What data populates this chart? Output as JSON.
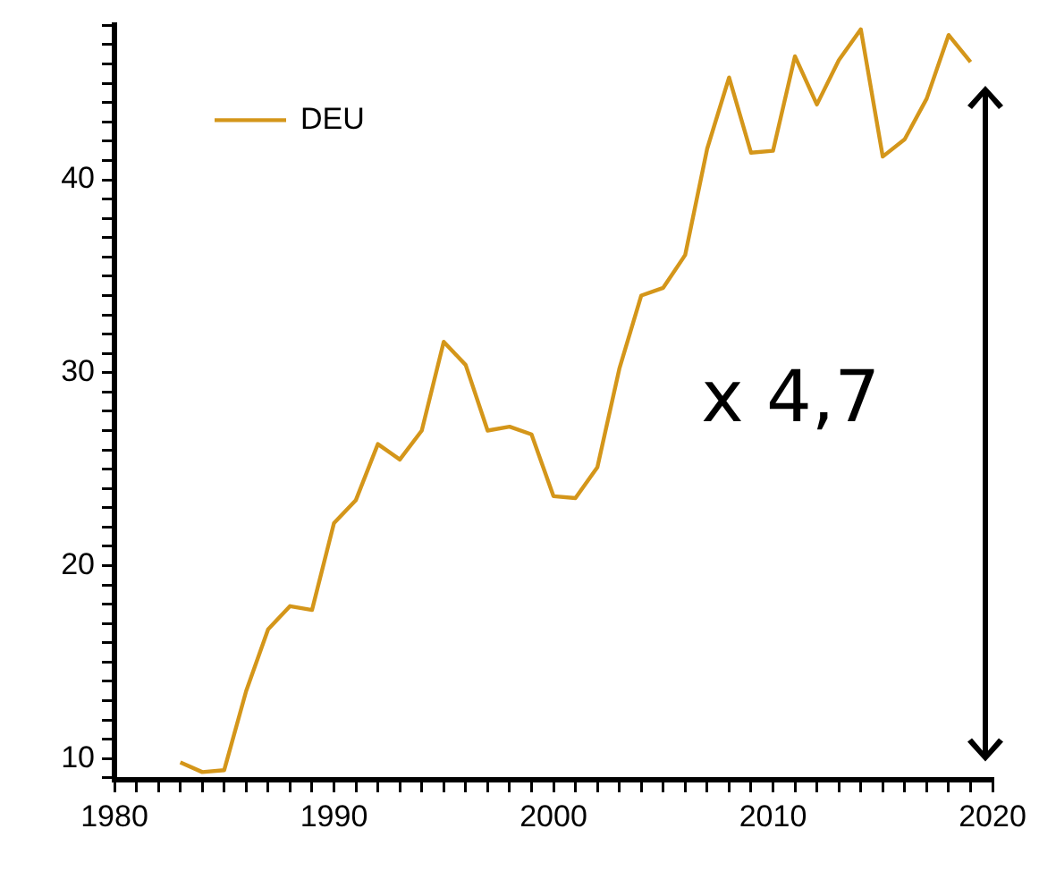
{
  "chart_data": {
    "type": "line",
    "x": [
      1983,
      1984,
      1985,
      1986,
      1987,
      1988,
      1989,
      1990,
      1991,
      1992,
      1993,
      1994,
      1995,
      1996,
      1997,
      1998,
      1999,
      2000,
      2001,
      2002,
      2003,
      2004,
      2005,
      2006,
      2007,
      2008,
      2009,
      2010,
      2011,
      2012,
      2013,
      2014,
      2015,
      2016,
      2017,
      2018,
      2019
    ],
    "series": [
      {
        "name": "DEU",
        "color": "#d4961a",
        "values": [
          9.8,
          9.3,
          9.4,
          13.5,
          16.7,
          17.9,
          17.7,
          22.2,
          23.4,
          26.3,
          25.5,
          27.0,
          31.6,
          30.4,
          27.0,
          27.2,
          26.8,
          23.6,
          23.5,
          25.1,
          30.2,
          34.0,
          34.4,
          36.1,
          41.6,
          45.3,
          41.4,
          41.5,
          46.4,
          43.9,
          46.2,
          47.8,
          41.2,
          42.1,
          44.2,
          47.5,
          46.1
        ]
      }
    ],
    "xlim": [
      1980,
      2020
    ],
    "xticks": [
      1980,
      {
        "value": 1981,
        "label": null
      },
      {
        "value": 1982,
        "label": null
      },
      {
        "value": 1983,
        "label": null
      },
      {
        "value": 1984,
        "label": null
      },
      {
        "value": 1985,
        "label": null
      },
      {
        "value": 1986,
        "label": null
      },
      {
        "value": 1987,
        "label": null
      },
      {
        "value": 1988,
        "label": null
      },
      {
        "value": 1989,
        "label": null
      },
      1990,
      {
        "value": 1991,
        "label": null
      },
      {
        "value": 1992,
        "label": null
      },
      {
        "value": 1993,
        "label": null
      },
      {
        "value": 1994,
        "label": null
      },
      {
        "value": 1995,
        "label": null
      },
      {
        "value": 1996,
        "label": null
      },
      {
        "value": 1997,
        "label": null
      },
      {
        "value": 1998,
        "label": null
      },
      {
        "value": 1999,
        "label": null
      },
      2000,
      {
        "value": 2001,
        "label": null
      },
      {
        "value": 2002,
        "label": null
      },
      {
        "value": 2003,
        "label": null
      },
      {
        "value": 2004,
        "label": null
      },
      {
        "value": 2005,
        "label": null
      },
      {
        "value": 2006,
        "label": null
      },
      {
        "value": 2007,
        "label": null
      },
      {
        "value": 2008,
        "label": null
      },
      {
        "value": 2009,
        "label": null
      },
      2010,
      {
        "value": 2011,
        "label": null
      },
      {
        "value": 2012,
        "label": null
      },
      {
        "value": 2013,
        "label": null
      },
      {
        "value": 2014,
        "label": null
      },
      {
        "value": 2015,
        "label": null
      },
      {
        "value": 2016,
        "label": null
      },
      {
        "value": 2017,
        "label": null
      },
      {
        "value": 2018,
        "label": null
      },
      {
        "value": 2019,
        "label": null
      },
      2020
    ],
    "ylim": [
      8.9,
      48
    ],
    "yticks": [
      {
        "value": 9,
        "label": null
      },
      10,
      {
        "value": 11,
        "label": null
      },
      {
        "value": 12,
        "label": null
      },
      {
        "value": 13,
        "label": null
      },
      {
        "value": 14,
        "label": null
      },
      {
        "value": 15,
        "label": null
      },
      {
        "value": 16,
        "label": null
      },
      {
        "value": 17,
        "label": null
      },
      {
        "value": 18,
        "label": null
      },
      {
        "value": 19,
        "label": null
      },
      20,
      {
        "value": 21,
        "label": null
      },
      {
        "value": 22,
        "label": null
      },
      {
        "value": 23,
        "label": null
      },
      {
        "value": 24,
        "label": null
      },
      {
        "value": 25,
        "label": null
      },
      {
        "value": 26,
        "label": null
      },
      {
        "value": 27,
        "label": null
      },
      {
        "value": 28,
        "label": null
      },
      {
        "value": 29,
        "label": null
      },
      30,
      {
        "value": 31,
        "label": null
      },
      {
        "value": 32,
        "label": null
      },
      {
        "value": 33,
        "label": null
      },
      {
        "value": 34,
        "label": null
      },
      {
        "value": 35,
        "label": null
      },
      {
        "value": 36,
        "label": null
      },
      {
        "value": 37,
        "label": null
      },
      {
        "value": 38,
        "label": null
      },
      {
        "value": 39,
        "label": null
      },
      40,
      {
        "value": 41,
        "label": null
      },
      {
        "value": 42,
        "label": null
      },
      {
        "value": 43,
        "label": null
      },
      {
        "value": 44,
        "label": null
      },
      {
        "value": 45,
        "label": null
      },
      {
        "value": 46,
        "label": null
      },
      {
        "value": 47,
        "label": null
      },
      {
        "value": 48,
        "label": null
      }
    ],
    "annotations": [
      "x 4,7"
    ],
    "grid": false,
    "legend": "top left",
    "marker": "none",
    "line_style": "solid"
  }
}
